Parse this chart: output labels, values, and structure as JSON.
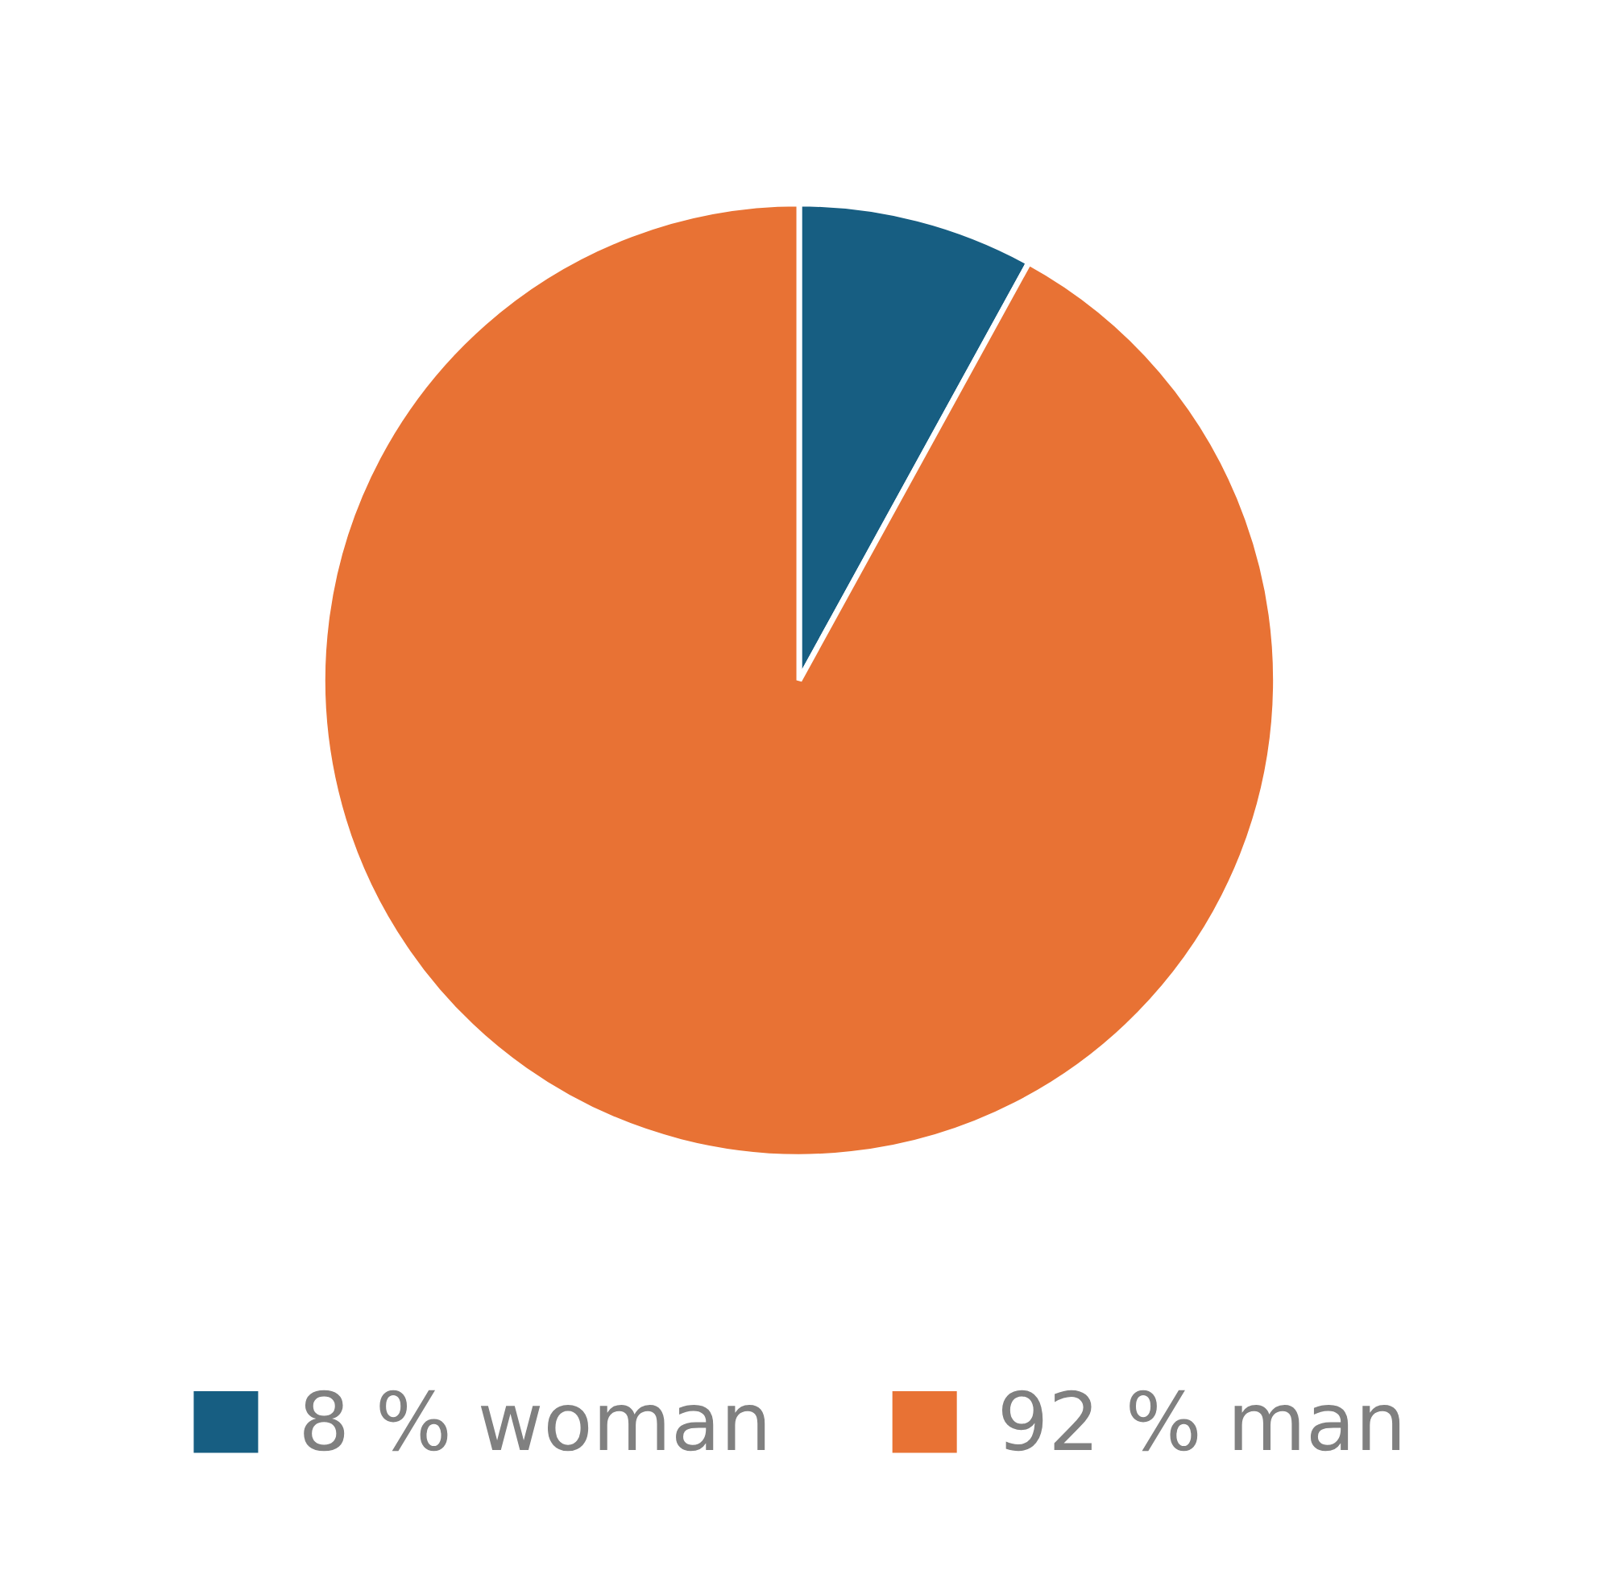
{
  "chart_data": {
    "type": "pie",
    "categories": [
      "8 % woman",
      "92 % man"
    ],
    "values": [
      8,
      92
    ],
    "colors": [
      "#175e82",
      "#e87234"
    ],
    "legend": "bottom"
  }
}
